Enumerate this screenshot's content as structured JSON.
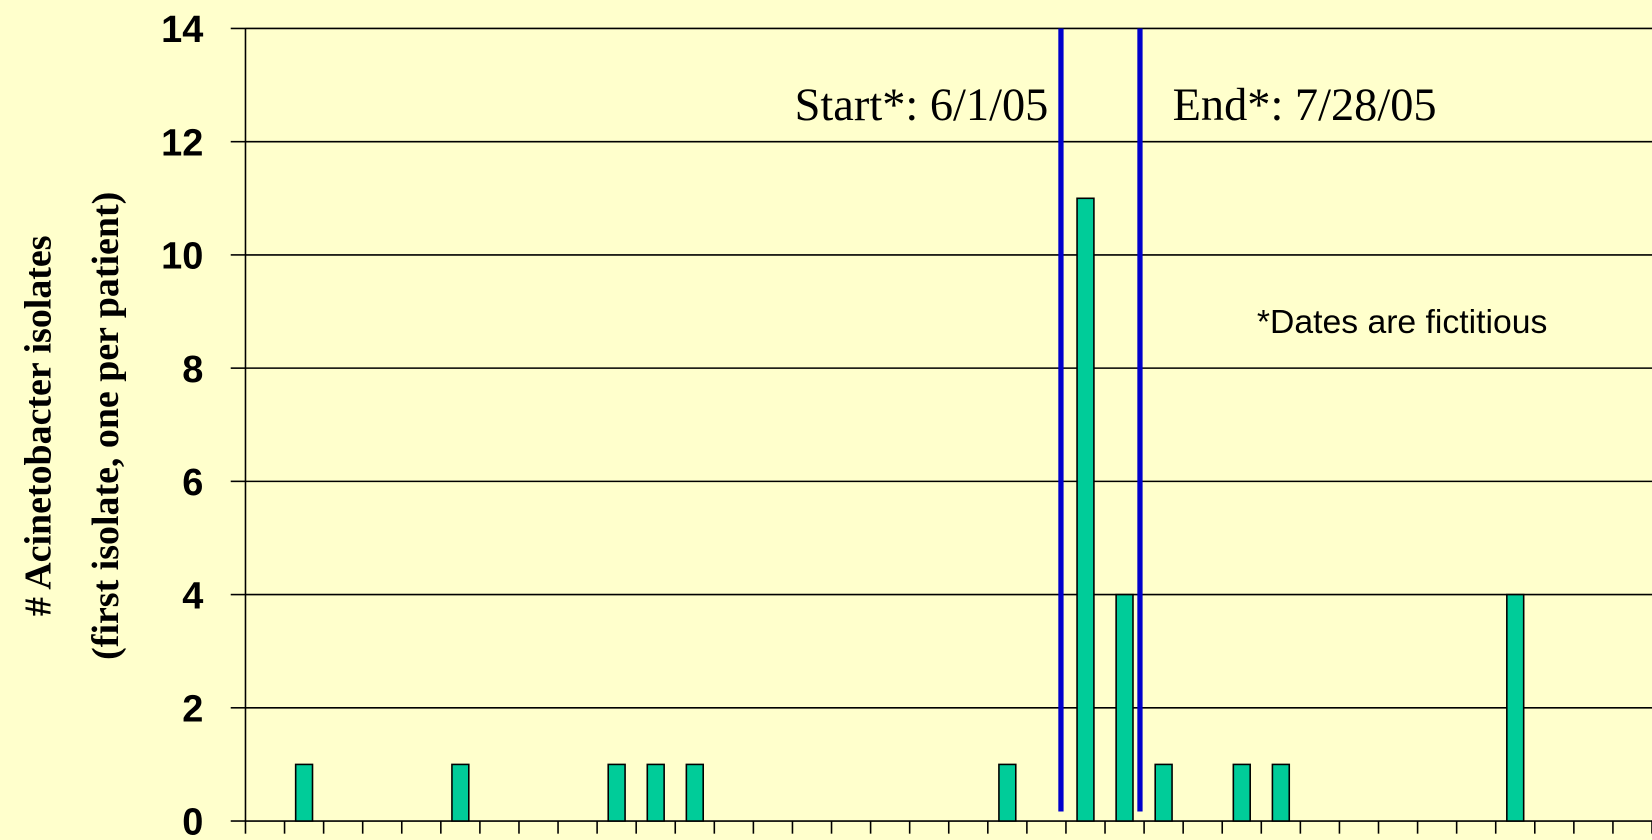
{
  "chart_data": {
    "type": "bar",
    "y_label": [
      "# Acinetobacter isolates",
      "(first isolate, one per patient)"
    ],
    "annotations": [
      "Start*: 6/1/05",
      "End*: 7/28/05",
      "*Dates are fictitious"
    ],
    "categories": [
      null,
      null,
      null,
      null,
      null,
      null,
      null,
      null,
      null,
      null,
      null,
      null,
      null,
      null,
      null,
      null,
      null,
      null,
      null,
      null,
      null,
      null,
      null,
      null,
      null,
      null,
      null,
      null,
      null,
      null,
      null,
      null,
      null,
      null,
      null,
      null
    ],
    "values": [
      0,
      1,
      0,
      0,
      0,
      1,
      0,
      0,
      0,
      1,
      1,
      1,
      0,
      0,
      0,
      0,
      0,
      0,
      0,
      1,
      0,
      11,
      4,
      1,
      0,
      1,
      1,
      0,
      0,
      0,
      0,
      0,
      4,
      0,
      0,
      0
    ],
    "color": "#00cc99",
    "ylim": [
      0,
      14
    ],
    "yticks": [
      0,
      2,
      4,
      6,
      8,
      10,
      12,
      14
    ],
    "grid": true
  }
}
